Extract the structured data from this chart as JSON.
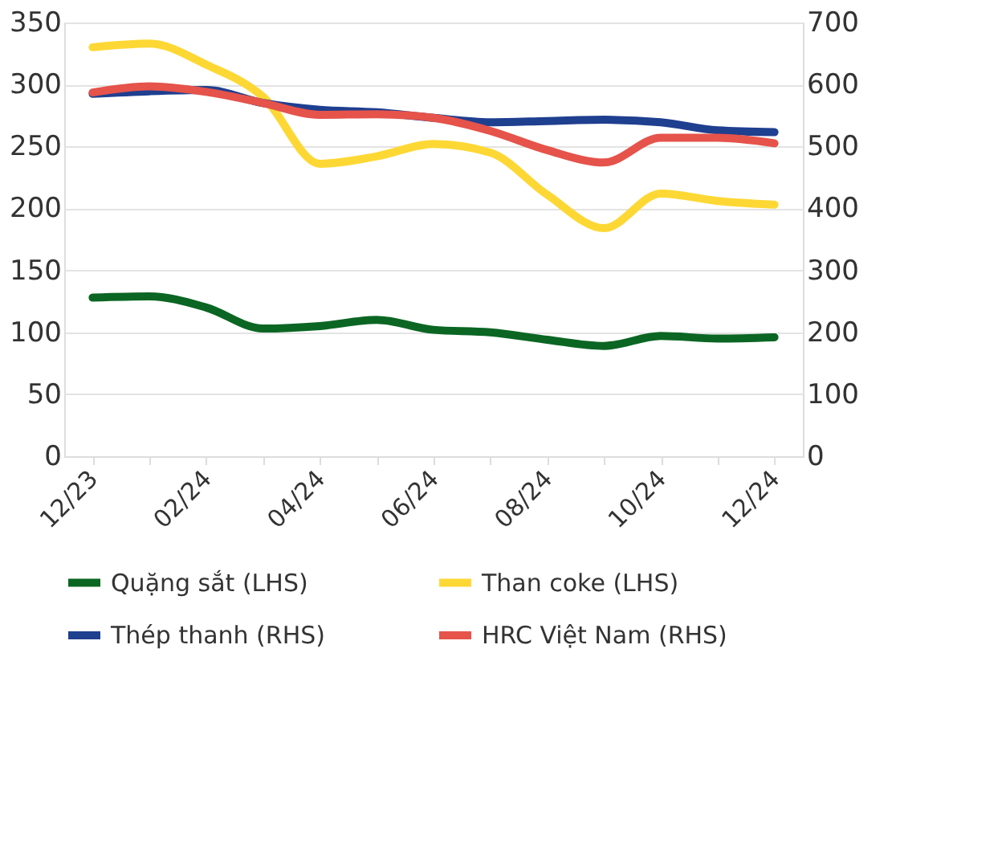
{
  "chart_data": {
    "type": "line",
    "categories": [
      "12/23",
      null,
      "02/24",
      null,
      "04/24",
      null,
      "06/24",
      null,
      "08/24",
      null,
      "10/24",
      null,
      "12/24"
    ],
    "ylim": [
      0,
      350
    ],
    "yticks": [
      0,
      50,
      100,
      150,
      200,
      250,
      300,
      350
    ],
    "y2lim": [
      0,
      700
    ],
    "y2ticks": [
      0,
      100,
      200,
      300,
      400,
      500,
      600,
      700
    ],
    "grid": "y",
    "legend": "bottom",
    "line_style": "solid",
    "marker": "none",
    "series": [
      {
        "name": "Quặng sắt (LHS)",
        "color": "#0b6623",
        "values": [
          128,
          129,
          120,
          103,
          105,
          110,
          102,
          100,
          94,
          89,
          97,
          95,
          96
        ]
      },
      {
        "name": "Than coke (LHS)",
        "color": "#fdd835",
        "values": [
          330,
          333,
          316,
          290,
          236,
          242,
          252,
          245,
          211,
          184,
          212,
          206,
          203
        ]
      },
      {
        "name": "Thép thanh (RHS)",
        "color": "#1f3f8f",
        "axis": "y2",
        "values": [
          585,
          589,
          591,
          570,
          559,
          555,
          546,
          539,
          541,
          543,
          539,
          526,
          523
        ]
      },
      {
        "name": "HRC Việt Nam (RHS)",
        "color": "#e5534b",
        "axis": "y2",
        "values": [
          587,
          597,
          588,
          570,
          551,
          552,
          546,
          525,
          494,
          474,
          514,
          514,
          505
        ]
      }
    ]
  }
}
